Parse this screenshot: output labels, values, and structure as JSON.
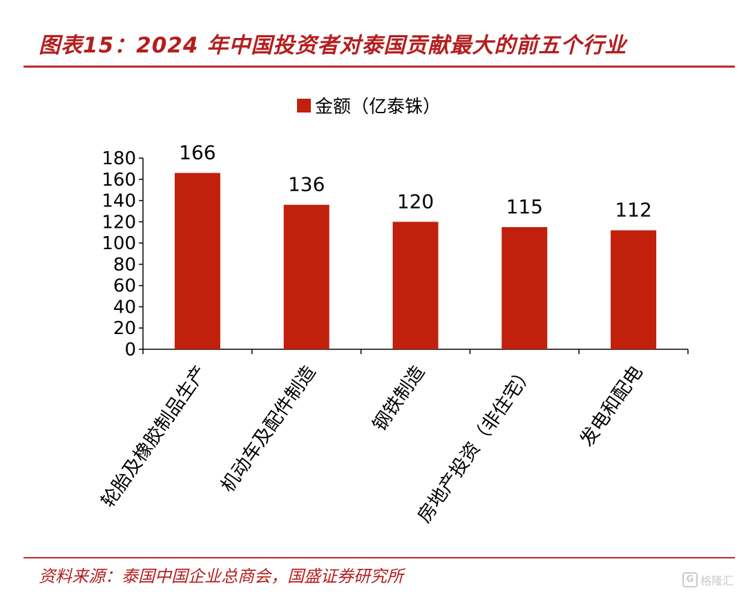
{
  "header": {
    "title": "图表15：2024 年中国投资者对泰国贡献最大的前五个行业"
  },
  "footer": {
    "source": "资料来源：泰国中国企业总商会，国盛证券研究所",
    "watermark": "格隆汇"
  },
  "colors": {
    "accent": "#b41e1e",
    "bar": "#c0200c"
  },
  "chart_data": {
    "type": "bar",
    "categories": [
      "轮胎及橡胶制品生产",
      "机动车及配件制造",
      "钢铁制造",
      "房地产投资（非住宅）",
      "发电和配电"
    ],
    "series": [
      {
        "name": "金额（亿泰铢）",
        "values": [
          166,
          136,
          120,
          115,
          112
        ]
      }
    ],
    "ylim": [
      0,
      180
    ],
    "yticks": [
      0,
      20,
      40,
      60,
      80,
      100,
      120,
      140,
      160,
      180
    ],
    "data_labels": true,
    "legend": "top-center",
    "grid": false
  }
}
